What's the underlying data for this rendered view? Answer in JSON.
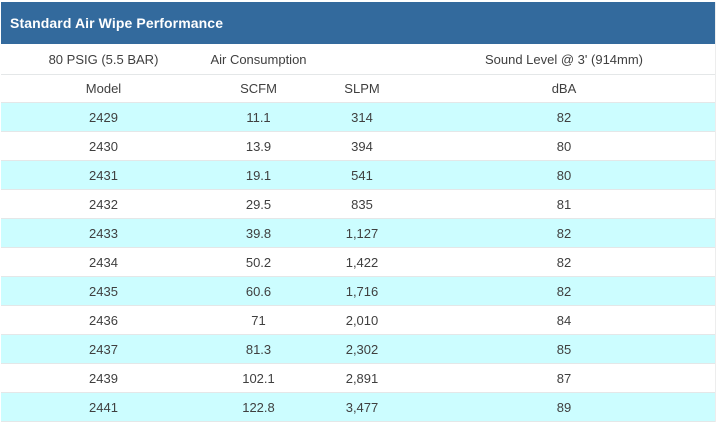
{
  "header": {
    "title": "Standard Air Wipe Performance"
  },
  "chart_data": {
    "type": "table",
    "title": "Standard Air Wipe Performance",
    "group_headers": [
      "80 PSIG (5.5 BAR)",
      "Air Consumption",
      "",
      "Sound Level @ 3' (914mm)"
    ],
    "columns": [
      "Model",
      "SCFM",
      "SLPM",
      "dBA"
    ],
    "rows": [
      [
        "2429",
        "11.1",
        "314",
        "82"
      ],
      [
        "2430",
        "13.9",
        "394",
        "80"
      ],
      [
        "2431",
        "19.1",
        "541",
        "80"
      ],
      [
        "2432",
        "29.5",
        "835",
        "81"
      ],
      [
        "2433",
        "39.8",
        "1,127",
        "82"
      ],
      [
        "2434",
        "50.2",
        "1,422",
        "82"
      ],
      [
        "2435",
        "60.6",
        "1,716",
        "82"
      ],
      [
        "2436",
        "71",
        "2,010",
        "84"
      ],
      [
        "2437",
        "81.3",
        "2,302",
        "85"
      ],
      [
        "2439",
        "102.1",
        "2,891",
        "87"
      ],
      [
        "2441",
        "122.8",
        "3,477",
        "89"
      ]
    ]
  },
  "colors": {
    "header_bg": "#336a9d",
    "alt_row_bg": "#ccfdff",
    "border": "#e4e7e8",
    "text": "#3f3f3f",
    "title_text": "#ffffff"
  }
}
